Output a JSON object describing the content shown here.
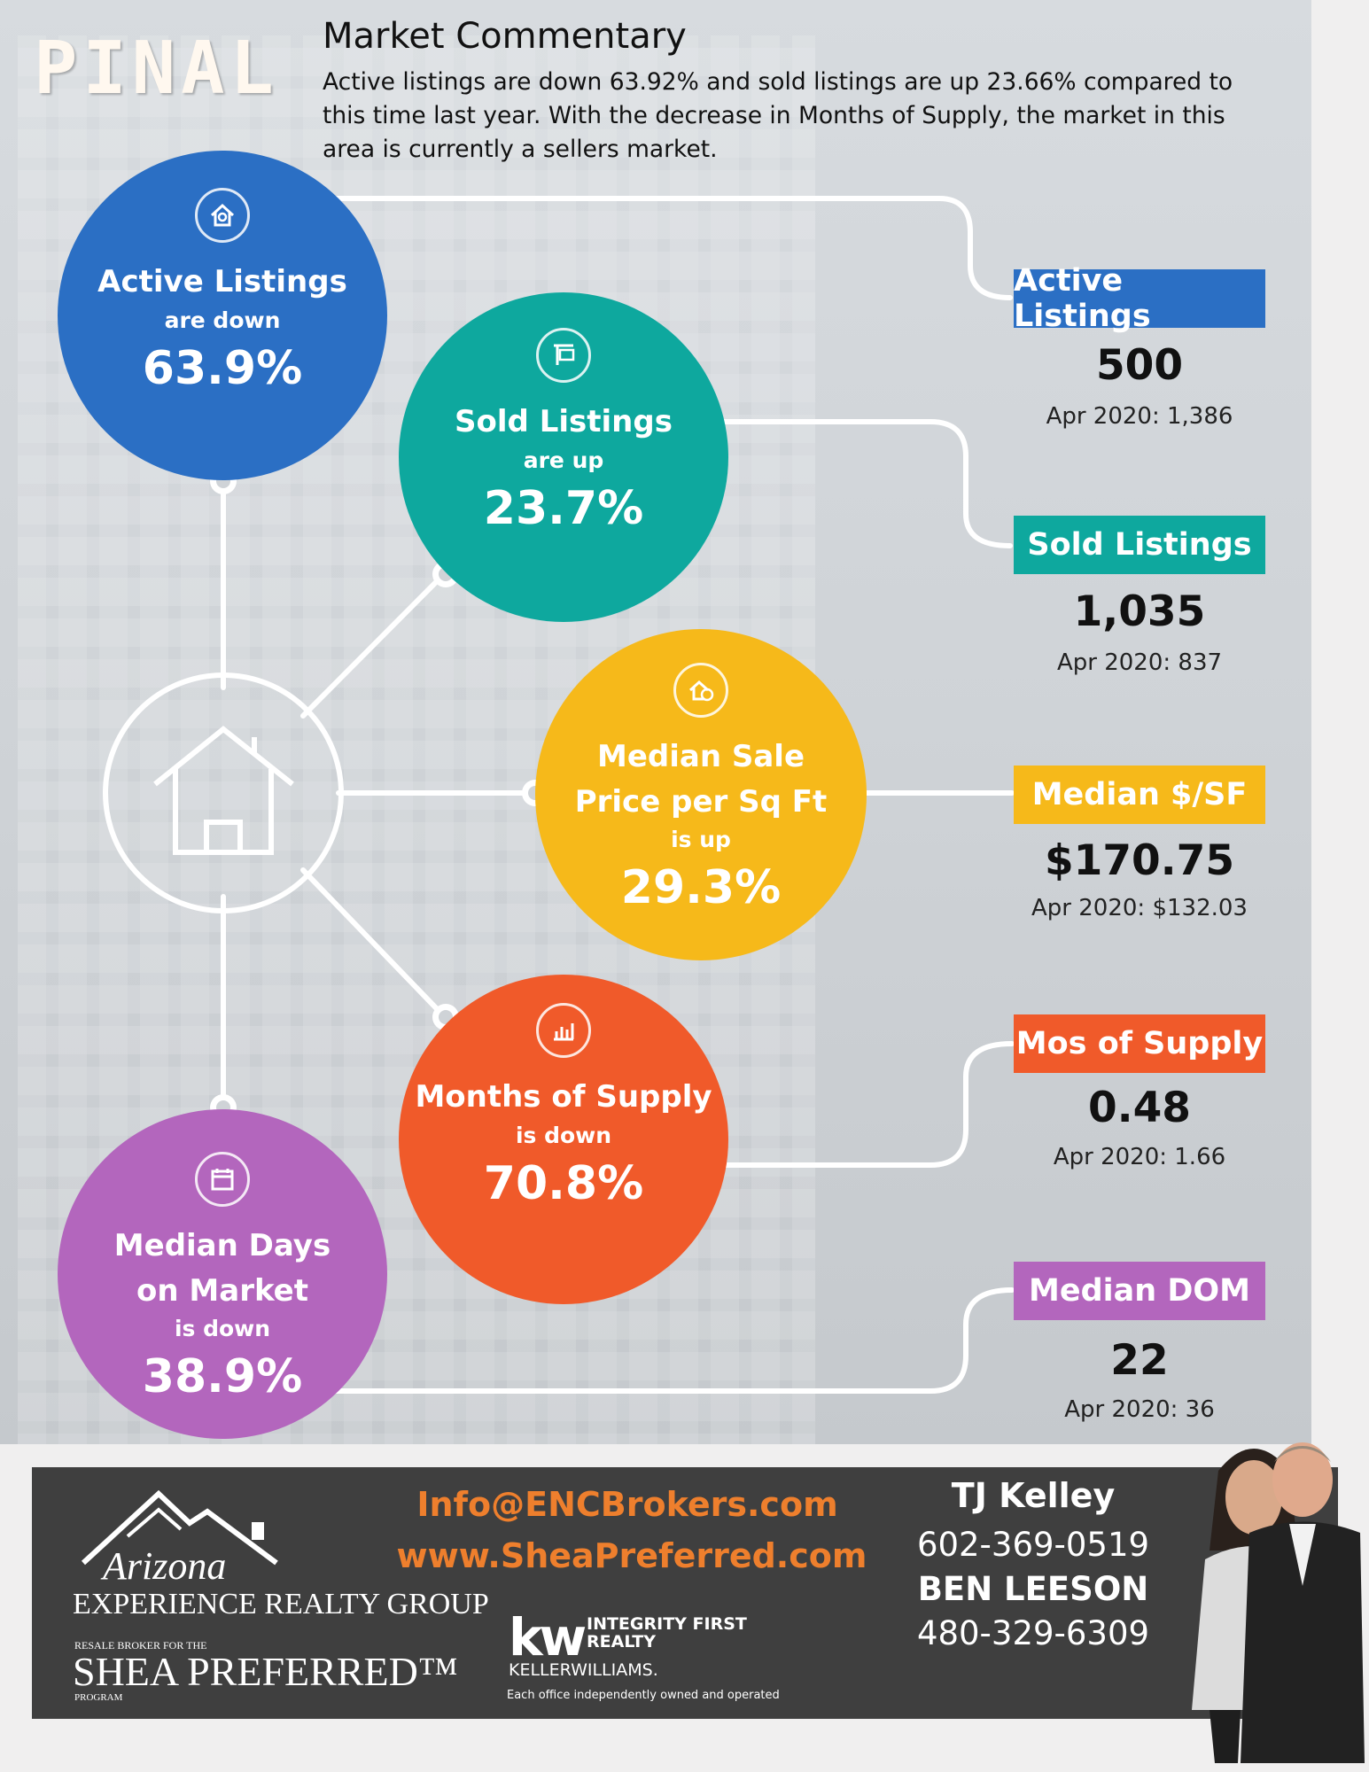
{
  "region": "PINAL",
  "commentary": {
    "title": "Market Commentary",
    "text": "Active listings are down 63.92% and sold listings are up 23.66% compared to this time last year. With the decrease in Months of Supply, the market in this area is currently a sellers market."
  },
  "circles": {
    "active": {
      "title": "Active Listings",
      "direction": "are down",
      "percent": "63.9%",
      "icon": "house-icon"
    },
    "sold": {
      "title": "Sold Listings",
      "direction": "are up",
      "percent": "23.7%",
      "icon": "sold-sign-icon"
    },
    "median_price": {
      "title_line1": "Median Sale",
      "title_line2": "Price per Sq Ft",
      "direction": "is up",
      "percent": "29.3%",
      "icon": "money-icon"
    },
    "supply": {
      "title": "Months of Supply",
      "direction": "is down",
      "percent": "70.8%",
      "icon": "bar-chart-icon"
    },
    "dom": {
      "title_line1": "Median Days",
      "title_line2": "on Market",
      "direction": "is down",
      "percent": "38.9%",
      "icon": "calendar-icon"
    }
  },
  "stats": {
    "active": {
      "label": "Active Listings",
      "value": "500",
      "prior": "Apr 2020: 1,386"
    },
    "sold": {
      "label": "Sold Listings",
      "value": "1,035",
      "prior": "Apr 2020: 837"
    },
    "median_sf": {
      "label": "Median $/SF",
      "value": "$170.75",
      "prior": "Apr 2020: $132.03"
    },
    "supply": {
      "label": "Mos of Supply",
      "value": "0.48",
      "prior": "Apr 2020: 1.66"
    },
    "dom": {
      "label": "Median DOM",
      "value": "22",
      "prior": "Apr 2020: 36"
    }
  },
  "colors": {
    "blue": "#2b6fc4",
    "teal": "#0ea89e",
    "yellow": "#f6b91a",
    "orange": "#f05a2a",
    "purple": "#b366bd"
  },
  "footer": {
    "email": "Info@ENCBrokers.com",
    "website": "www.SheaPreferred.com",
    "logo_script": "Arizona",
    "logo_company": "EXPERIENCE  REALTY  GROUP",
    "resale_line": "RESALE BROKER FOR THE",
    "shea": "SHEA  PREFERRED™",
    "program": "PROGRAM",
    "kw_mark": "kw",
    "kw_line1": "INTEGRITY FIRST",
    "kw_line2": "REALTY",
    "kw_brand": "KELLERWILLIAMS.",
    "disclaimer": "Each office independently owned and operated",
    "agent1_name": "TJ Kelley",
    "agent1_phone": "602-369-0519",
    "agent2_name": "BEN LEESON",
    "agent2_phone": "480-329-6309"
  }
}
